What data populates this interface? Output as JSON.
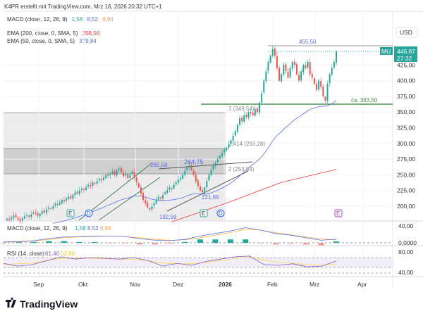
{
  "header": {
    "credit": "K4PR erstellt mit TradingView.com, Mrz 16, 2026 20:32 UTC+1"
  },
  "legend": {
    "macd": {
      "label": "MACD (close, 12, 26, 9)",
      "hist": "1,58",
      "macd": "8,52",
      "signal": "6,94"
    },
    "ema200": {
      "label": "EMA (200, close, 0, SMA, 5)",
      "value": "258,56"
    },
    "ema50": {
      "label": "EMA (50, close, 0, SMA, 5)",
      "value": "379,84"
    },
    "rsi": {
      "label": "RSI (14, close)",
      "value": "61,40",
      "ma": "53,80"
    }
  },
  "price_axis": {
    "currency": "USD",
    "labels": [
      "425,00",
      "400,00",
      "375,00",
      "350,00",
      "325,00",
      "300,00",
      "275,00",
      "250,00",
      "225,00",
      "200,00"
    ],
    "label_values": [
      425,
      400,
      375,
      350,
      325,
      300,
      275,
      250,
      225,
      200
    ],
    "symbol": "MU",
    "last_price": "446,87",
    "countdown": "27:32"
  },
  "macd_axis": {
    "labels": [
      "40,00",
      "0,0000"
    ]
  },
  "rsi_axis": {
    "labels": [
      "80,00",
      "40,00"
    ]
  },
  "time_axis": {
    "labels": [
      "Sep",
      "Okt",
      "Nov",
      "Dez",
      "2026",
      "Feb",
      "Mrz",
      "Apr"
    ]
  },
  "annotations": {
    "high_line": "455,50",
    "support_line": "ca. 363,50",
    "fib3": "3 (349,54)",
    "fib2414": "2,414 (293,28)",
    "fib2": "2 (253,54)",
    "p1": "260,58",
    "p2": "264,75",
    "p3": "221,69",
    "p4": "192,59"
  },
  "events": [
    "E",
    "D",
    "E",
    "D",
    "E"
  ],
  "colors": {
    "up": "#26a69a",
    "down": "#ef5350",
    "ema50": "#5b6ee1",
    "ema200": "#e53935",
    "support": "#2e7d32",
    "rsi": "#7e57c2",
    "signal": "#ffb74d"
  },
  "chart_data": {
    "type": "candlestick",
    "closes": [
      180,
      178,
      182,
      185,
      183,
      179,
      176,
      181,
      184,
      186,
      183,
      187,
      190,
      188,
      185,
      188,
      192,
      190,
      195,
      198,
      196,
      200,
      204,
      202,
      206,
      210,
      208,
      212,
      215,
      213,
      218,
      222,
      220,
      225,
      228,
      226,
      230,
      234,
      232,
      238,
      236,
      240,
      244,
      241,
      246,
      250,
      248,
      252,
      255,
      250,
      258,
      260,
      254,
      248,
      252,
      245,
      250,
      255,
      245,
      238,
      230,
      220,
      210,
      205,
      198,
      195,
      200,
      205,
      210,
      215,
      212,
      218,
      222,
      226,
      230,
      228,
      234,
      238,
      242,
      245,
      250,
      256,
      262,
      265,
      258,
      250,
      240,
      232,
      225,
      222,
      230,
      240,
      250,
      258,
      265,
      270,
      275,
      280,
      285,
      290,
      293,
      298,
      305,
      312,
      320,
      330,
      340,
      335,
      345,
      342,
      350,
      348,
      345,
      355,
      350,
      365,
      380,
      400,
      415,
      430,
      440,
      450,
      440,
      420,
      400,
      410,
      425,
      415,
      405,
      420,
      430,
      425,
      410,
      400,
      415,
      425,
      420,
      430,
      410,
      405,
      395,
      385,
      400,
      390,
      375,
      368,
      395,
      410,
      420,
      430,
      446.87
    ],
    "ema200_points": [
      [
        75,
        175
      ],
      [
        100,
        205
      ],
      [
        125,
        238
      ],
      [
        150,
        258.56
      ]
    ],
    "macd_line": [
      2,
      3,
      5,
      10,
      14,
      15,
      16,
      16,
      15,
      10,
      6,
      5,
      8,
      16,
      22,
      28,
      36,
      30,
      22,
      18,
      12,
      6,
      8.52
    ],
    "signal_line": [
      2,
      2,
      4,
      8,
      12,
      14,
      15,
      16,
      15,
      12,
      8,
      6,
      7,
      12,
      18,
      24,
      32,
      30,
      24,
      19,
      14,
      9,
      6.94
    ],
    "rsi_line": [
      55,
      48,
      52,
      62,
      72,
      66,
      70,
      68,
      66,
      70,
      62,
      48,
      55,
      50,
      60,
      66,
      72,
      74,
      52,
      50,
      54,
      46,
      48,
      61.4
    ],
    "rsi_ma": [
      52,
      54,
      56,
      62,
      68,
      68,
      68,
      67,
      66,
      66,
      62,
      56,
      54,
      54,
      58,
      62,
      68,
      72,
      64,
      58,
      55,
      52,
      50,
      53.8
    ]
  }
}
